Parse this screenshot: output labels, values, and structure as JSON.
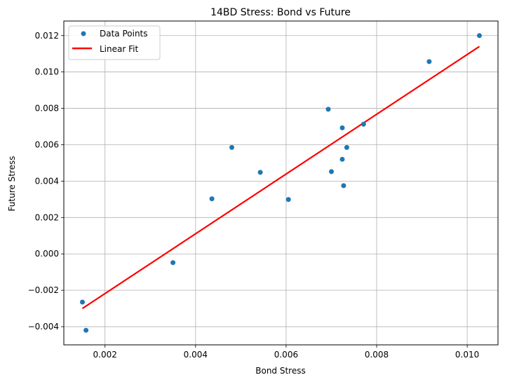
{
  "chart_data": {
    "type": "scatter",
    "title": "14BD Stress: Bond vs Future",
    "xlabel": "Bond Stress",
    "ylabel": "Future Stress",
    "xlim": [
      0.00109,
      0.01068
    ],
    "ylim": [
      -0.005,
      0.0128
    ],
    "x_ticks": [
      0.002,
      0.004,
      0.006,
      0.008,
      0.01
    ],
    "x_tick_labels": [
      "0.002",
      "0.004",
      "0.006",
      "0.008",
      "0.010"
    ],
    "y_ticks": [
      -0.004,
      -0.002,
      0.0,
      0.002,
      0.004,
      0.006,
      0.008,
      0.01,
      0.012
    ],
    "y_tick_labels": [
      "−0.004",
      "−0.002",
      "0.000",
      "0.002",
      "0.004",
      "0.006",
      "0.008",
      "0.010",
      "0.012"
    ],
    "grid": true,
    "legend_position": "upper-left",
    "series": [
      {
        "name": "Data Points",
        "kind": "scatter",
        "color": "#1f77b4",
        "points": [
          [
            0.0015,
            -0.00265
          ],
          [
            0.00158,
            -0.0042
          ],
          [
            0.0035,
            -0.00048
          ],
          [
            0.00436,
            0.00303
          ],
          [
            0.0048,
            0.00585
          ],
          [
            0.00543,
            0.00448
          ],
          [
            0.00605,
            0.00299
          ],
          [
            0.00693,
            0.00795
          ],
          [
            0.007,
            0.00452
          ],
          [
            0.00724,
            0.00693
          ],
          [
            0.00724,
            0.0052
          ],
          [
            0.00727,
            0.00375
          ],
          [
            0.00734,
            0.00585
          ],
          [
            0.00771,
            0.00713
          ],
          [
            0.00916,
            0.01057
          ],
          [
            0.01027,
            0.012
          ]
        ]
      },
      {
        "name": "Linear Fit",
        "kind": "line",
        "color": "#ff0000",
        "points": [
          [
            0.0015,
            -0.003
          ],
          [
            0.01027,
            0.0114
          ]
        ]
      }
    ]
  }
}
